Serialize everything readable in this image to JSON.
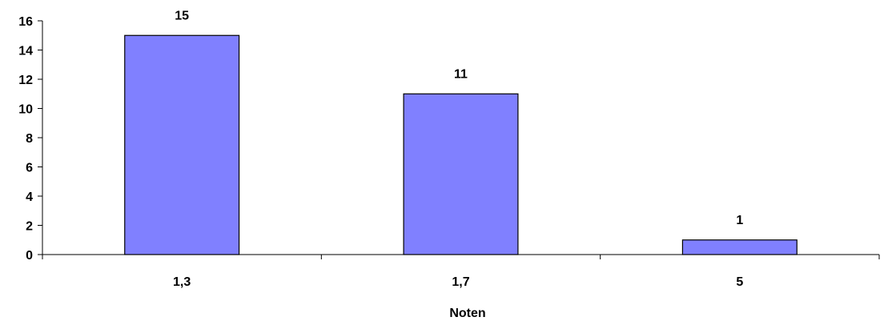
{
  "chart_data": {
    "type": "bar",
    "categories": [
      "1,3",
      "1,7",
      "5"
    ],
    "values": [
      15,
      11,
      1
    ],
    "data_labels": [
      "15",
      "11",
      "1"
    ],
    "xlabel": "Noten",
    "ylabel": "",
    "ylim": [
      0,
      16
    ],
    "yticks": [
      0,
      2,
      4,
      6,
      8,
      10,
      12,
      14,
      16
    ],
    "bar_color": "#8080FF",
    "bar_edge_color": "#000000",
    "grid": false,
    "legend": "none"
  }
}
